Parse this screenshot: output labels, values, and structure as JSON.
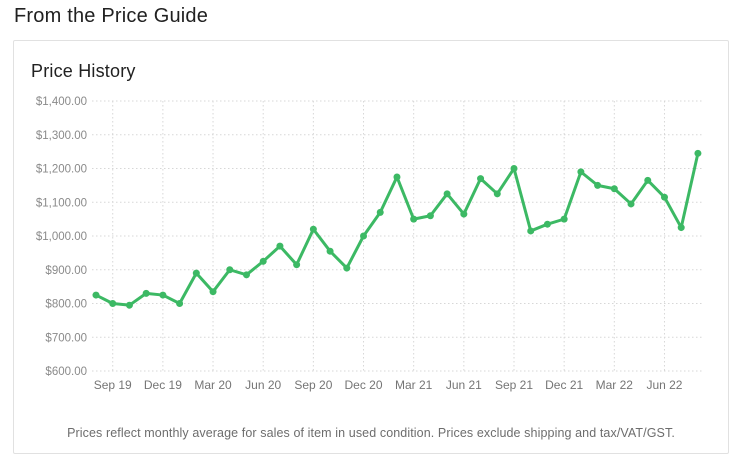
{
  "page": {
    "heading": "From the Price Guide"
  },
  "card": {
    "title": "Price History",
    "footnote": "Prices reflect monthly average for sales of item in used condition. Prices exclude shipping and tax/VAT/GST."
  },
  "colors": {
    "line": "#3cb964",
    "grid": "#d7d7d7",
    "y_label": "#8a8a8a",
    "x_label": "#757575",
    "heading": "#212121",
    "card_border": "#e1e1e1"
  },
  "chart_data": {
    "type": "line",
    "title": "Price History",
    "x": [
      "Aug 19",
      "Sep 19",
      "Oct 19",
      "Nov 19",
      "Dec 19",
      "Jan 20",
      "Feb 20",
      "Mar 20",
      "Apr 20",
      "May 20",
      "Jun 20",
      "Jul 20",
      "Aug 20",
      "Sep 20",
      "Oct 20",
      "Nov 20",
      "Dec 20",
      "Jan 21",
      "Feb 21",
      "Mar 21",
      "Apr 21",
      "May 21",
      "Jun 21",
      "Jul 21",
      "Aug 21",
      "Sep 21",
      "Oct 21",
      "Nov 21",
      "Dec 21",
      "Jan 22",
      "Feb 22",
      "Mar 22",
      "Apr 22",
      "May 22",
      "Jun 22",
      "Jul 22",
      "Aug 22"
    ],
    "values": [
      825,
      800,
      795,
      830,
      825,
      800,
      890,
      835,
      900,
      885,
      925,
      970,
      915,
      1020,
      955,
      905,
      1000,
      1070,
      1175,
      1050,
      1060,
      1125,
      1065,
      1170,
      1125,
      1200,
      1015,
      1035,
      1050,
      1190,
      1150,
      1140,
      1095,
      1165,
      1115,
      1025,
      1245
    ],
    "x_tick_labels": [
      "Sep 19",
      "Dec 19",
      "Mar 20",
      "Jun 20",
      "Sep 20",
      "Dec 20",
      "Mar 21",
      "Jun 21",
      "Sep 21",
      "Dec 21",
      "Mar 22",
      "Jun 22"
    ],
    "y_ticks": [
      600,
      700,
      800,
      900,
      1000,
      1100,
      1200,
      1300,
      1400
    ],
    "y_tick_labels": [
      "$600.00",
      "$700.00",
      "$800.00",
      "$900.00",
      "$1,000.00",
      "$1,100.00",
      "$1,200.00",
      "$1,300.00",
      "$1,400.00"
    ],
    "ylim": [
      600,
      1400
    ],
    "xlabel": "",
    "ylabel": "",
    "grid": "dotted-both-axes",
    "legend": "none",
    "marker": "circle"
  }
}
